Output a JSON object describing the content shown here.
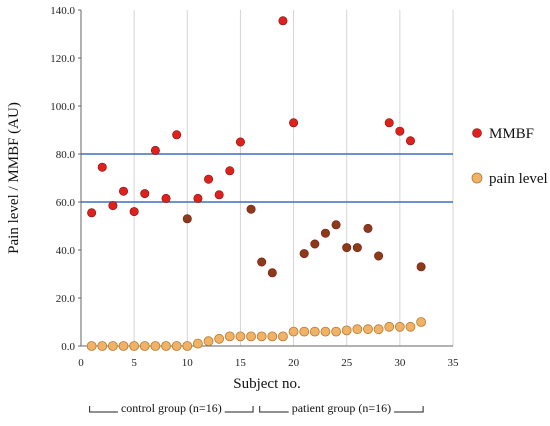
{
  "chart_data": {
    "type": "scatter",
    "xlabel": "Subject no.",
    "ylabel": "Pain level / MMBF (AU)",
    "xlim": [
      0,
      35
    ],
    "ylim": [
      0,
      140
    ],
    "x_ticks": [
      "0",
      "5",
      "10",
      "15",
      "20",
      "25",
      "30",
      "35"
    ],
    "y_ticks": [
      "0.0",
      "20.0",
      "40.0",
      "60.0",
      "80.0",
      "100.0",
      "120.0",
      "140.0"
    ],
    "grid": "vertical",
    "legend_position": "right",
    "reference_lines": [
      60,
      80
    ],
    "series": [
      {
        "name": "MMBF",
        "color": "#e0201c",
        "points": [
          [
            1,
            55.5
          ],
          [
            2,
            74.5
          ],
          [
            3,
            58.5
          ],
          [
            4,
            64.5
          ],
          [
            5,
            56
          ],
          [
            6,
            63.5
          ],
          [
            7,
            81.5
          ],
          [
            8,
            61.5
          ],
          [
            9,
            88
          ],
          [
            10,
            53
          ],
          [
            11,
            61.5
          ],
          [
            12,
            69.5
          ],
          [
            13,
            63
          ],
          [
            14,
            73
          ],
          [
            15,
            85
          ],
          [
            16,
            57
          ],
          [
            17,
            35
          ],
          [
            18,
            30.5
          ],
          [
            19,
            135.5
          ],
          [
            20,
            93
          ],
          [
            21,
            38.5
          ],
          [
            22,
            42.5
          ],
          [
            23,
            47
          ],
          [
            24,
            50.5
          ],
          [
            25,
            41
          ],
          [
            26,
            41
          ],
          [
            27,
            49
          ],
          [
            28,
            37.5
          ],
          [
            29,
            93
          ],
          [
            30,
            89.5
          ],
          [
            31,
            85.5
          ],
          [
            32,
            33
          ]
        ]
      },
      {
        "name": "pain level",
        "color": "#f2b266",
        "points": [
          [
            1,
            0
          ],
          [
            2,
            0
          ],
          [
            3,
            0
          ],
          [
            4,
            0
          ],
          [
            5,
            0
          ],
          [
            6,
            0
          ],
          [
            7,
            0
          ],
          [
            8,
            0
          ],
          [
            9,
            0
          ],
          [
            10,
            0
          ],
          [
            11,
            1
          ],
          [
            12,
            2
          ],
          [
            13,
            3
          ],
          [
            14,
            4
          ],
          [
            15,
            4
          ],
          [
            16,
            4
          ],
          [
            17,
            4
          ],
          [
            18,
            4
          ],
          [
            19,
            4
          ],
          [
            20,
            6
          ],
          [
            21,
            6
          ],
          [
            22,
            6
          ],
          [
            23,
            6
          ],
          [
            24,
            6
          ],
          [
            25,
            6.5
          ],
          [
            26,
            7
          ],
          [
            27,
            7
          ],
          [
            28,
            7
          ],
          [
            29,
            8
          ],
          [
            30,
            8
          ],
          [
            31,
            8
          ],
          [
            32,
            10
          ]
        ]
      }
    ],
    "groups": [
      {
        "label": "control group (n=16)",
        "from": 1,
        "to": 16
      },
      {
        "label": "patient group (n=16)",
        "from": 17,
        "to": 32
      }
    ]
  }
}
